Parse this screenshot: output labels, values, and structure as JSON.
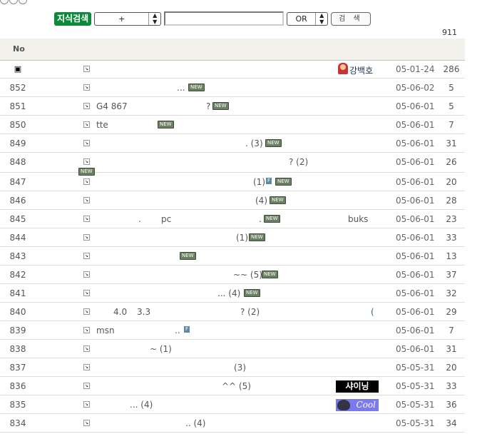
{
  "search": {
    "badge": "지식검색",
    "field_select": "+",
    "query": "",
    "operator": "OR",
    "button": "검 색"
  },
  "total": "911",
  "header": {
    "no": "No"
  },
  "notice": {
    "icon": "notice-icon",
    "author": "강백호",
    "date": "05-01-24",
    "hits": "286"
  },
  "author_images": {
    "836": "샤이닝",
    "835": "Cool"
  },
  "rows": [
    {
      "no": "852",
      "segs": [
        "..."
      ],
      "new": true,
      "f": false,
      "author": "",
      "date": "05-06-02",
      "hits": "5"
    },
    {
      "no": "851",
      "segs": [
        "G4 867",
        "?"
      ],
      "new": true,
      "f": false,
      "author": "",
      "date": "05-06-01",
      "hits": "5"
    },
    {
      "no": "850",
      "segs": [
        "tte"
      ],
      "new": true,
      "f": false,
      "author": "",
      "date": "05-06-01",
      "hits": "7"
    },
    {
      "no": "849",
      "segs": [
        ". (3)"
      ],
      "new": true,
      "f": false,
      "author": "",
      "date": "05-06-01",
      "hits": "31"
    },
    {
      "no": "848",
      "segs": [
        "? (2)"
      ],
      "new": true,
      "f": false,
      "author": "",
      "date": "05-06-01",
      "hits": "26"
    },
    {
      "no": "847",
      "segs": [
        "(1)"
      ],
      "new": true,
      "f": true,
      "author": "",
      "date": "05-06-01",
      "hits": "20"
    },
    {
      "no": "846",
      "segs": [
        "(4)"
      ],
      "new": true,
      "f": false,
      "author": "",
      "date": "05-06-01",
      "hits": "28"
    },
    {
      "no": "845",
      "segs": [
        ".",
        "pc",
        "."
      ],
      "new": true,
      "f": false,
      "author": "buks",
      "date": "05-06-01",
      "hits": "23"
    },
    {
      "no": "844",
      "segs": [
        "(1)"
      ],
      "new": true,
      "f": false,
      "author": "",
      "date": "05-06-01",
      "hits": "33"
    },
    {
      "no": "843",
      "segs": [],
      "new": true,
      "f": false,
      "author": "",
      "date": "05-06-01",
      "hits": "13"
    },
    {
      "no": "842",
      "segs": [
        "~~ (5)"
      ],
      "new": true,
      "f": false,
      "author": "",
      "date": "05-06-01",
      "hits": "37"
    },
    {
      "no": "841",
      "segs": [
        "... (4)"
      ],
      "new": true,
      "f": false,
      "author": "",
      "date": "05-06-01",
      "hits": "32"
    },
    {
      "no": "840",
      "segs": [
        "4.0",
        "3.3",
        "? (2)"
      ],
      "new": false,
      "f": false,
      "author": "(",
      "date": "05-06-01",
      "hits": "29"
    },
    {
      "no": "839",
      "segs": [
        "msn",
        ".."
      ],
      "new": false,
      "f": true,
      "author": "",
      "date": "05-06-01",
      "hits": "7"
    },
    {
      "no": "838",
      "segs": [
        "~ (1)"
      ],
      "new": false,
      "f": false,
      "author": "",
      "date": "05-06-01",
      "hits": "31"
    },
    {
      "no": "837",
      "segs": [
        "(3)"
      ],
      "new": false,
      "f": false,
      "author": "",
      "date": "05-05-31",
      "hits": "20"
    },
    {
      "no": "836",
      "segs": [
        "^^ (5)"
      ],
      "new": false,
      "f": false,
      "author": "",
      "date": "05-05-31",
      "hits": "33"
    },
    {
      "no": "835",
      "segs": [
        "... (4)"
      ],
      "new": false,
      "f": false,
      "author": "",
      "date": "05-05-31",
      "hits": "36"
    },
    {
      "no": "834",
      "segs": [
        ".. (4)"
      ],
      "new": false,
      "f": false,
      "author": "",
      "date": "05-05-31",
      "hits": "34"
    }
  ],
  "badges": {
    "new": "NEW",
    "f": "F"
  },
  "colors": {
    "badge_green": "#0a8a3a",
    "new_badge": "#6b7f62",
    "header_bg": "#f2f1ec"
  }
}
